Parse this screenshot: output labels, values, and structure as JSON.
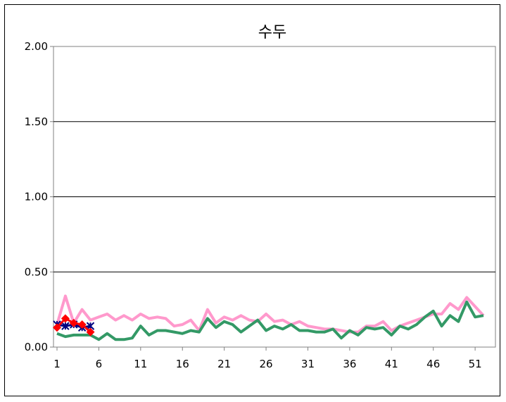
{
  "chart_data": {
    "type": "line",
    "title": "수두",
    "xlabel": "",
    "ylabel": "",
    "ylim": [
      0,
      2.0
    ],
    "y_ticks": [
      "0.00",
      "0.50",
      "1.00",
      "1.50",
      "2.00"
    ],
    "x_ticks": [
      "1",
      "6",
      "11",
      "16",
      "21",
      "26",
      "31",
      "36",
      "41",
      "46",
      "51"
    ],
    "grid": true,
    "legend": "none",
    "series": [
      {
        "color": "#ff99cc",
        "marker": "none",
        "x": [
          1,
          2,
          3,
          4,
          5,
          6,
          7,
          8,
          9,
          10,
          11,
          12,
          13,
          14,
          15,
          16,
          17,
          18,
          19,
          20,
          21,
          22,
          23,
          24,
          25,
          26,
          27,
          28,
          29,
          30,
          31,
          32,
          33,
          34,
          35,
          36,
          37,
          38,
          39,
          40,
          41,
          42,
          43,
          44,
          45,
          46,
          47,
          48,
          49,
          50,
          51,
          52
        ],
        "values": [
          0.15,
          0.34,
          0.16,
          0.25,
          0.18,
          0.2,
          0.22,
          0.18,
          0.21,
          0.18,
          0.22,
          0.19,
          0.2,
          0.19,
          0.14,
          0.15,
          0.18,
          0.11,
          0.25,
          0.16,
          0.2,
          0.18,
          0.21,
          0.18,
          0.17,
          0.22,
          0.17,
          0.18,
          0.15,
          0.17,
          0.14,
          0.13,
          0.12,
          0.12,
          0.11,
          0.1,
          0.1,
          0.14,
          0.14,
          0.17,
          0.11,
          0.14,
          0.16,
          0.18,
          0.2,
          0.22,
          0.22,
          0.29,
          0.25,
          0.33,
          0.27,
          0.21
        ]
      },
      {
        "color": "#339966",
        "marker": "none",
        "x": [
          1,
          2,
          3,
          4,
          5,
          6,
          7,
          8,
          9,
          10,
          11,
          12,
          13,
          14,
          15,
          16,
          17,
          18,
          19,
          20,
          21,
          22,
          23,
          24,
          25,
          26,
          27,
          28,
          29,
          30,
          31,
          32,
          33,
          34,
          35,
          36,
          37,
          38,
          39,
          40,
          41,
          42,
          43,
          44,
          45,
          46,
          47,
          48,
          49,
          50,
          51,
          52
        ],
        "values": [
          0.09,
          0.07,
          0.08,
          0.08,
          0.08,
          0.05,
          0.09,
          0.05,
          0.05,
          0.06,
          0.14,
          0.08,
          0.11,
          0.11,
          0.1,
          0.09,
          0.11,
          0.1,
          0.19,
          0.13,
          0.17,
          0.15,
          0.1,
          0.14,
          0.18,
          0.11,
          0.14,
          0.12,
          0.15,
          0.11,
          0.11,
          0.1,
          0.1,
          0.12,
          0.06,
          0.11,
          0.08,
          0.13,
          0.12,
          0.13,
          0.08,
          0.14,
          0.12,
          0.15,
          0.2,
          0.24,
          0.14,
          0.21,
          0.17,
          0.3,
          0.2,
          0.21
        ]
      },
      {
        "color": "#000080",
        "marker": "asterisk",
        "x": [
          1,
          2,
          3,
          4,
          5
        ],
        "values": [
          0.15,
          0.14,
          0.15,
          0.13,
          0.14
        ]
      },
      {
        "color": "#ff0000",
        "marker": "diamond",
        "x": [
          1,
          2,
          3,
          4,
          5
        ],
        "values": [
          0.13,
          0.19,
          0.16,
          0.15,
          0.1
        ]
      }
    ]
  }
}
